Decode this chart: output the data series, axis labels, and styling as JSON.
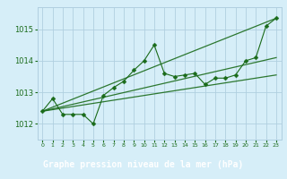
{
  "title": "Graphe pression niveau de la mer (hPa)",
  "bg_color": "#d6eef8",
  "grid_color": "#b0cfe0",
  "line_color": "#1a6b1a",
  "label_bg": "#3a7a3a",
  "label_fg": "#ffffff",
  "xlim": [
    -0.5,
    23.5
  ],
  "ylim": [
    1011.5,
    1015.7
  ],
  "yticks": [
    1012,
    1013,
    1014,
    1015
  ],
  "xticks": [
    0,
    1,
    2,
    3,
    4,
    5,
    6,
    7,
    8,
    9,
    10,
    11,
    12,
    13,
    14,
    15,
    16,
    17,
    18,
    19,
    20,
    21,
    22,
    23
  ],
  "main_series": {
    "x": [
      0,
      1,
      2,
      3,
      4,
      5,
      6,
      7,
      8,
      9,
      10,
      11,
      12,
      13,
      14,
      15,
      16,
      17,
      18,
      19,
      20,
      21,
      22,
      23
    ],
    "y": [
      1012.4,
      1012.8,
      1012.3,
      1012.3,
      1012.3,
      1012.0,
      1012.9,
      1013.15,
      1013.35,
      1013.7,
      1014.0,
      1014.5,
      1013.6,
      1013.5,
      1013.55,
      1013.6,
      1013.25,
      1013.45,
      1013.45,
      1013.55,
      1014.0,
      1014.1,
      1015.1,
      1015.35
    ]
  },
  "trend_lines": [
    {
      "x0": 0,
      "y0": 1012.4,
      "x1": 23,
      "y1": 1013.55
    },
    {
      "x0": 0,
      "y0": 1012.4,
      "x1": 23,
      "y1": 1014.1
    },
    {
      "x0": 0,
      "y0": 1012.4,
      "x1": 23,
      "y1": 1015.35
    }
  ]
}
